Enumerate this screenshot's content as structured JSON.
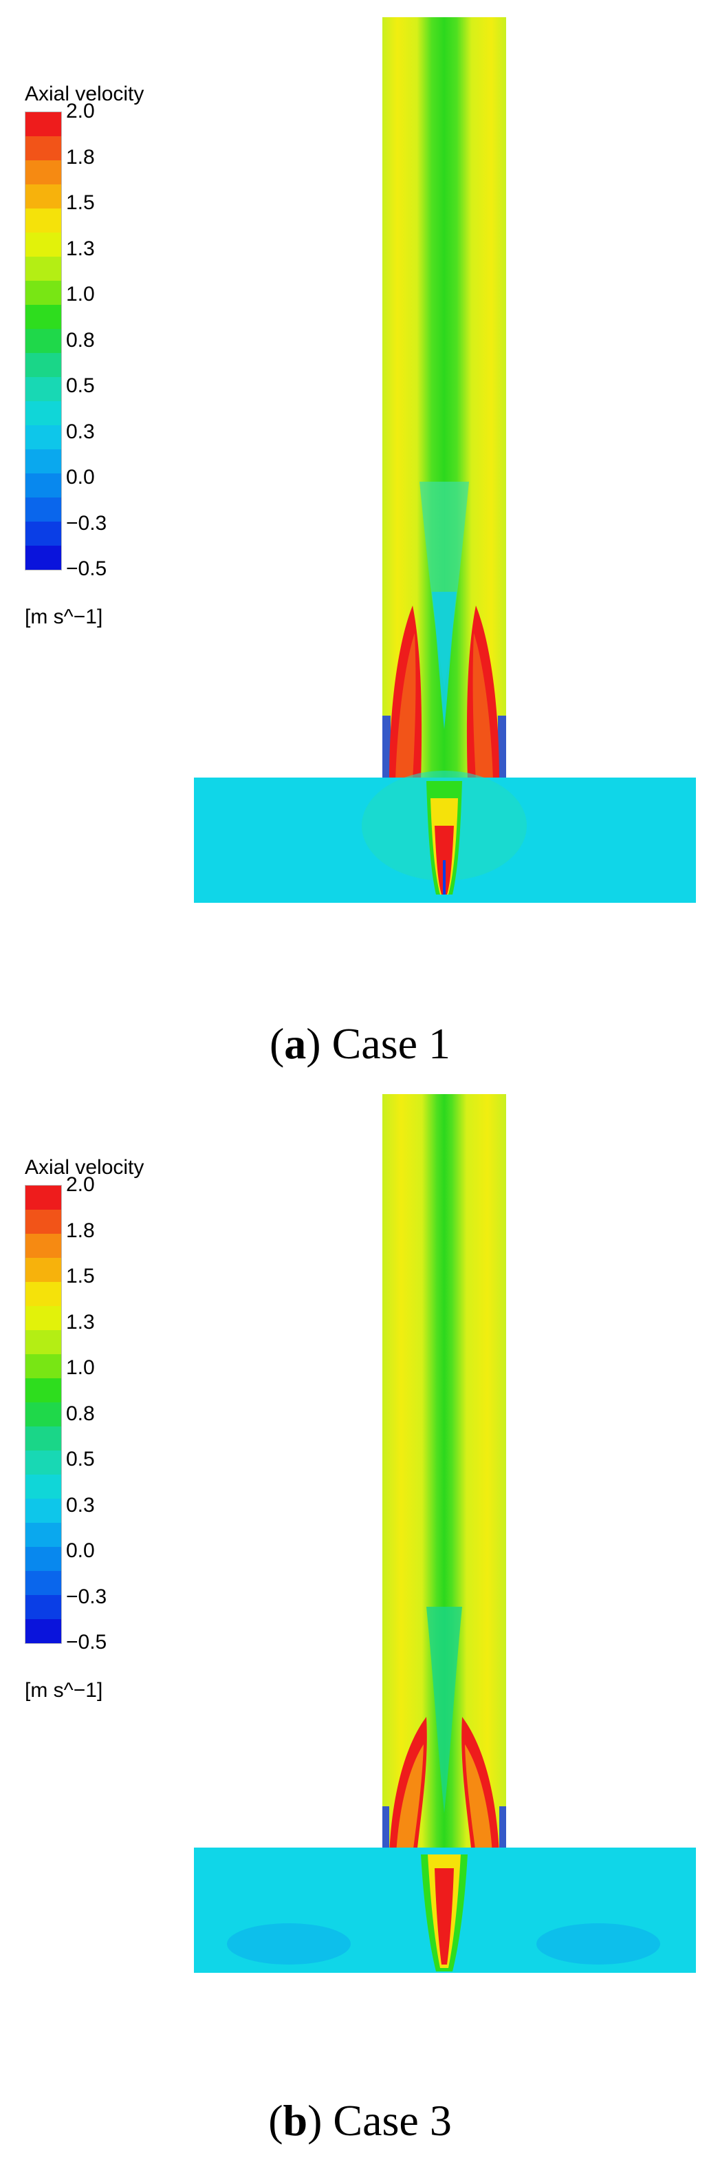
{
  "legend": {
    "title": "Axial velocity",
    "units": "[m s^−1]",
    "ticks": [
      "2.0",
      "1.8",
      "1.5",
      "1.3",
      "1.0",
      "0.8",
      "0.5",
      "0.3",
      "0.0",
      "−0.3",
      "−0.5"
    ],
    "colors": [
      "#ee1c1c",
      "#f25418",
      "#f68a12",
      "#f7b20c",
      "#f5e20a",
      "#e2f20a",
      "#b4ee14",
      "#78e614",
      "#2edd1e",
      "#1fd84a",
      "#1ad688",
      "#18d8b4",
      "#10d6d8",
      "#0ec6ea",
      "#0aa8ee",
      "#0888ee",
      "#0a66ec",
      "#0a3ee6",
      "#0a14dc"
    ]
  },
  "panels": [
    {
      "id": "a",
      "caption_letter": "a",
      "caption_text": "Case 1"
    },
    {
      "id": "b",
      "caption_letter": "b",
      "caption_text": "Case 3"
    }
  ]
}
